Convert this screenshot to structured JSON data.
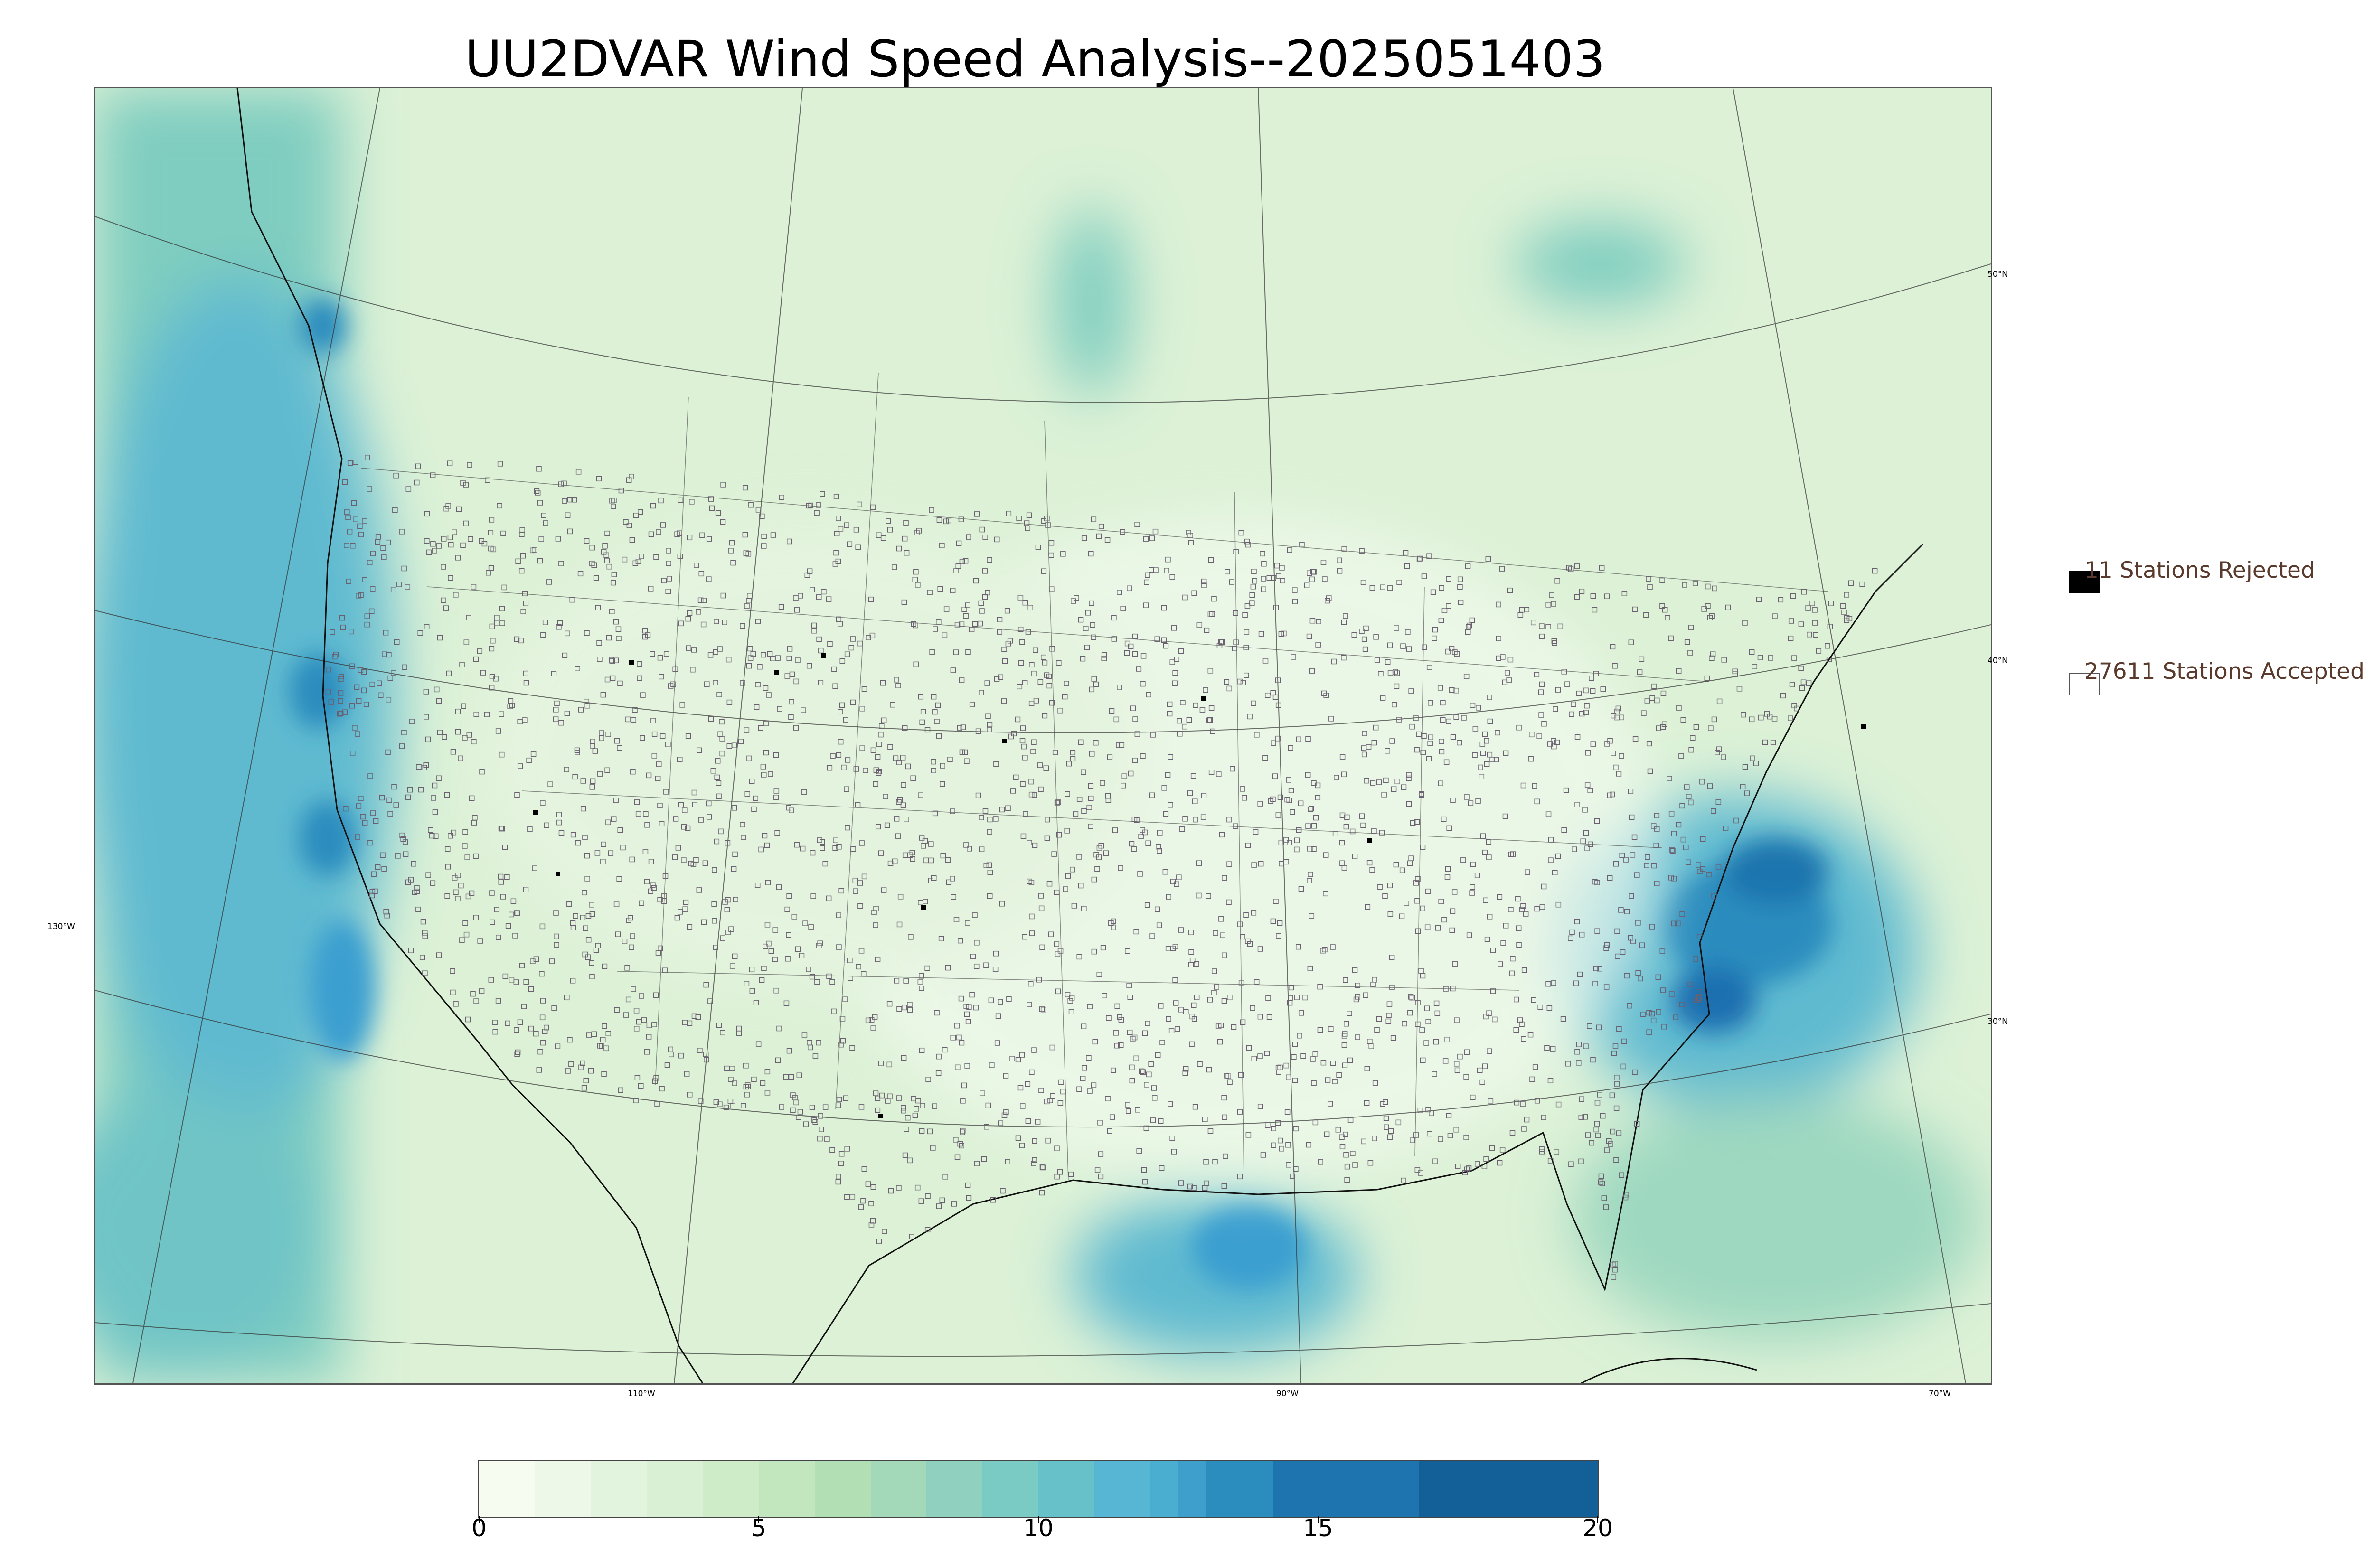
{
  "title": "UU2DVAR Wind Speed Analysis--2025051403",
  "map": {
    "longitude_labels": [
      "130°W",
      "110°W",
      "90°W",
      "70°W"
    ],
    "latitude_labels": [
      "50°N",
      "40°N",
      "30°N"
    ]
  },
  "legend": {
    "rejected": {
      "label": "11 Stations Rejected",
      "marker": "filled-black-square"
    },
    "accepted": {
      "label": "27611 Stations Accepted",
      "marker": "hollow-square"
    }
  },
  "colorbar": {
    "min": 0,
    "max": 20,
    "ticks": [
      "0",
      "5",
      "10",
      "15",
      "20"
    ],
    "boundaries": [
      0,
      1,
      2,
      3,
      4,
      5,
      6,
      7,
      8,
      9,
      10,
      11,
      12,
      12.5,
      13,
      14.2,
      16.8,
      20
    ],
    "colors": [
      "#f7fcf0",
      "#eef8e9",
      "#e3f4de",
      "#daf0d4",
      "#cfecc8",
      "#c2e6bd",
      "#b2e0b4",
      "#a3d9b9",
      "#8fd1be",
      "#7acbc4",
      "#66c2c8",
      "#57b6d3",
      "#4aaed0",
      "#3e9fcd",
      "#2b8cbe",
      "#1e74ae",
      "#135f97"
    ]
  },
  "colors": {
    "background_low": "#eaf6e2",
    "ocean_high": "#3a9fd0",
    "ocean_peak": "#1d6fb0"
  }
}
